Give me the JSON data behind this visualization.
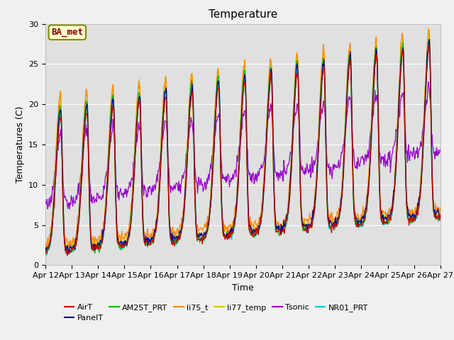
{
  "title": "Temperature",
  "ylabel": "Temperatures (C)",
  "xlabel": "Time",
  "ylim": [
    0,
    30
  ],
  "tick_labels": [
    "Apr 12",
    "Apr 13",
    "Apr 14",
    "Apr 15",
    "Apr 16",
    "Apr 17",
    "Apr 18",
    "Apr 19",
    "Apr 20",
    "Apr 21",
    "Apr 22",
    "Apr 23",
    "Apr 24",
    "Apr 25",
    "Apr 26",
    "Apr 27"
  ],
  "fig_bg_color": "#f0f0f0",
  "plot_bg_color": "#e0e0e0",
  "series_colors": {
    "AirT": "#cc0000",
    "PanelT": "#000099",
    "AM25T_PRT": "#00bb00",
    "li75_t": "#ff8800",
    "li77_temp": "#cccc00",
    "Tsonic": "#9900cc",
    "NR01_PRT": "#00cccc"
  },
  "legend_label": "BA_met",
  "legend_text_color": "#880000",
  "legend_box_facecolor": "#ffffcc",
  "legend_box_edgecolor": "#888800",
  "title_fontsize": 11,
  "label_fontsize": 9,
  "tick_fontsize": 8,
  "line_width": 0.9
}
